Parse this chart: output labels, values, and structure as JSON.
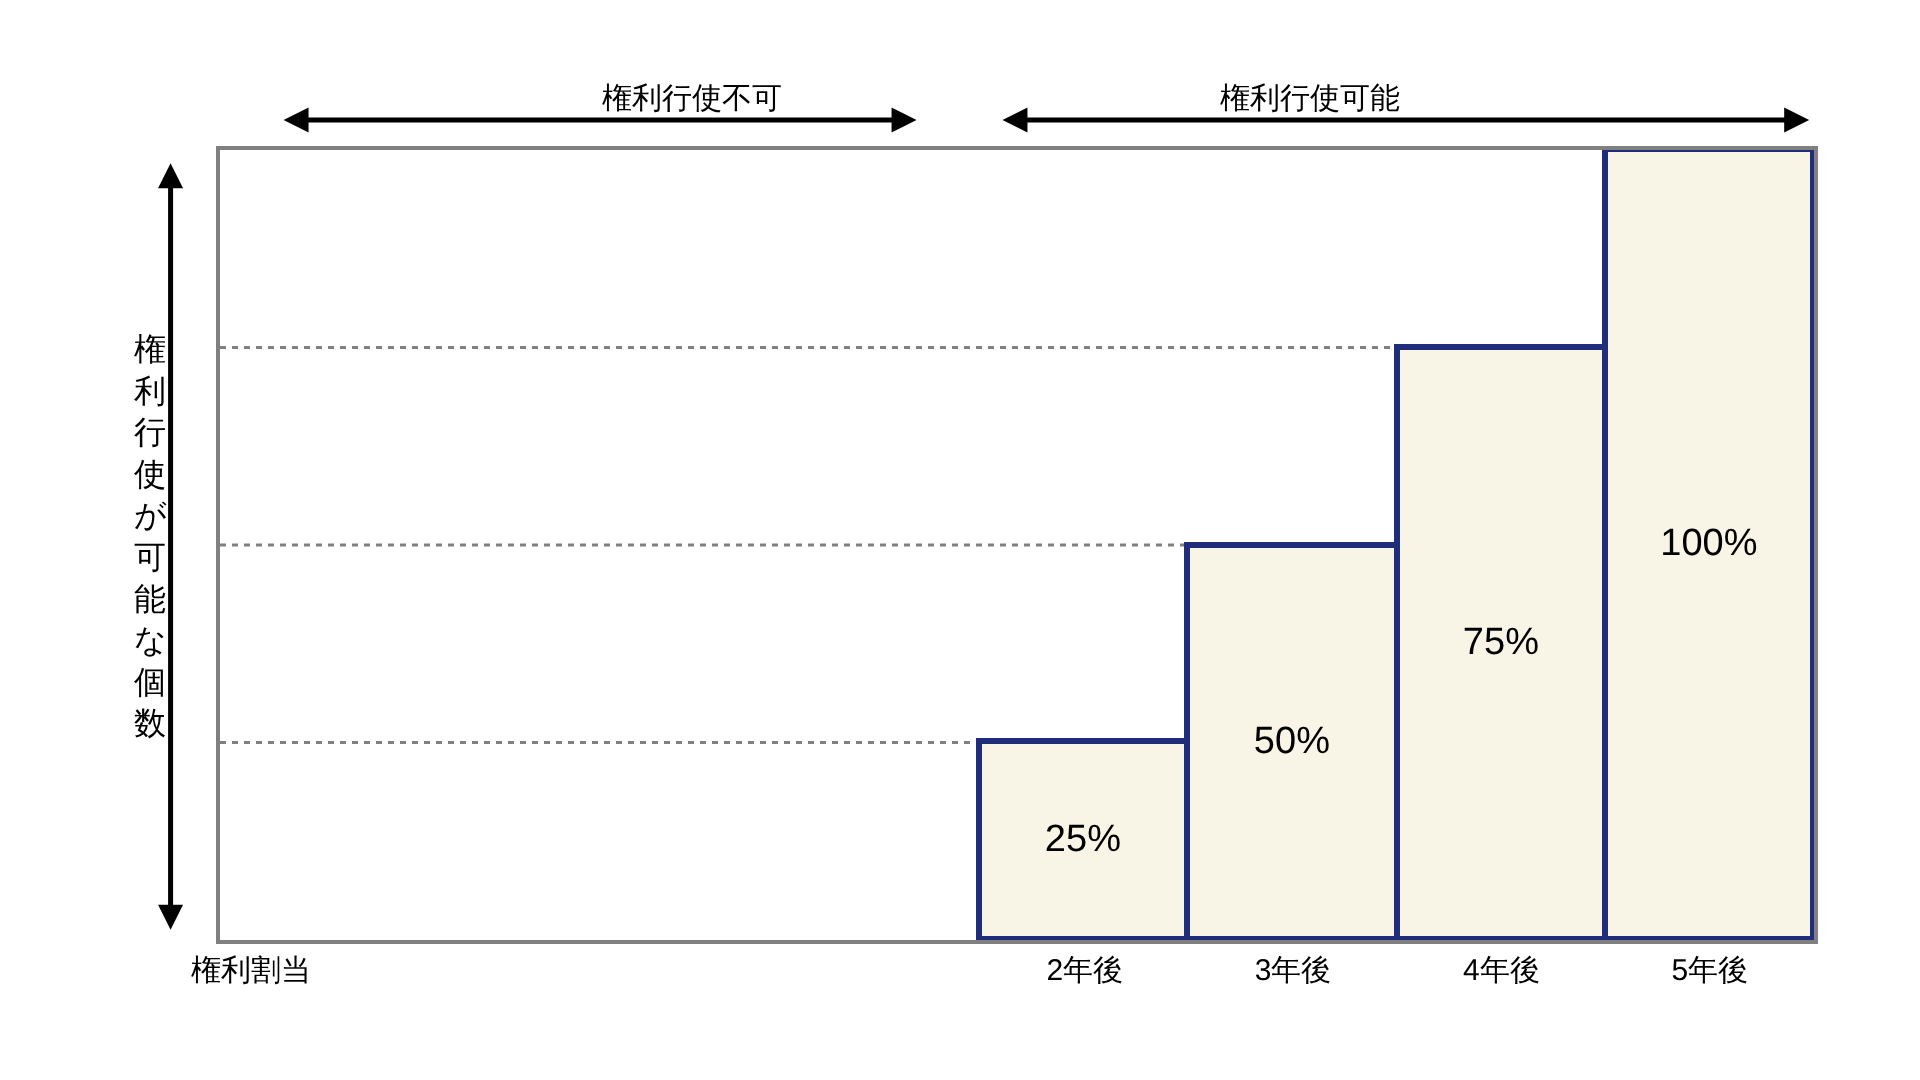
{
  "chart_data": {
    "type": "bar",
    "ylabel": "権利行使が可能な個数",
    "categories": [
      "権利割当",
      null,
      null,
      null,
      "2年後",
      "3年後",
      "4年後",
      "5年後"
    ],
    "values": [
      null,
      null,
      null,
      null,
      25,
      50,
      75,
      100
    ],
    "value_labels": [
      null,
      null,
      null,
      null,
      "25%",
      "50%",
      "75%",
      "100%"
    ],
    "color": "#f8f4e6",
    "ylim": [
      0,
      100
    ],
    "ref_lines": [
      {
        "axis": "y",
        "value": 25,
        "color": "#808080",
        "line_style": "dotted"
      },
      {
        "axis": "y",
        "value": 50,
        "color": "#808080",
        "line_style": "dotted"
      },
      {
        "axis": "y",
        "value": 75,
        "color": "#808080",
        "line_style": "dotted"
      }
    ],
    "annotations": [
      "権利行使不可",
      "権利行使可能"
    ],
    "grid": false,
    "legend": false
  }
}
